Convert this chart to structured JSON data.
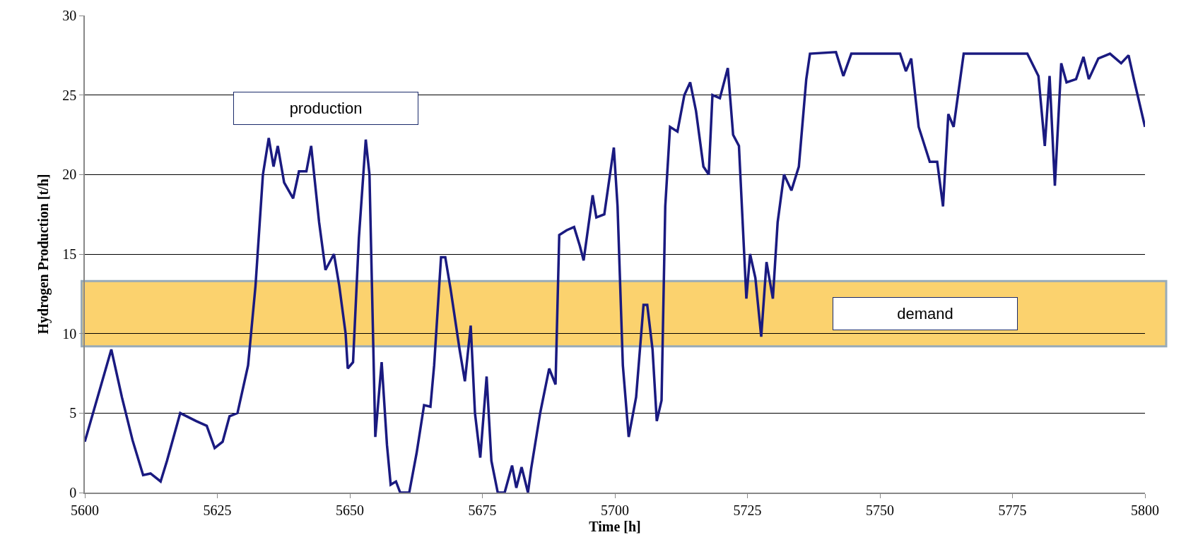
{
  "chart_data": {
    "type": "line",
    "xlabel": "Time [h]",
    "ylabel": "Hydrogen Production [t/h]",
    "x": [
      5600,
      5605,
      5607,
      5609,
      5611,
      5612.4,
      5614.3,
      5615.5,
      5618,
      5621,
      5623,
      5624.5,
      5626,
      5627.3,
      5628.8,
      5630.8,
      5632.2,
      5633.6,
      5634.7,
      5635.6,
      5636.4,
      5637.6,
      5639.3,
      5640.4,
      5641.8,
      5642.7,
      5644.2,
      5645.4,
      5647,
      5648,
      5649.2,
      5649.6,
      5650.6,
      5651.7,
      5653,
      5653.7,
      5654.8,
      5656,
      5657,
      5657.7,
      5658.7,
      5659.5,
      5661.2,
      5662.6,
      5664,
      5665.2,
      5665.9,
      5667.2,
      5668,
      5669,
      5670.7,
      5671.7,
      5672.8,
      5673.6,
      5674.6,
      5675.8,
      5676.7,
      5677.9,
      5679.2,
      5680.6,
      5681.4,
      5682.4,
      5683.6,
      5684.2,
      5685.9,
      5687.6,
      5688.8,
      5689.5,
      5690.9,
      5692.3,
      5693.4,
      5694.1,
      5695.8,
      5696.5,
      5698,
      5699.8,
      5700.5,
      5701.5,
      5702.6,
      5704,
      5705.4,
      5706.1,
      5707.1,
      5707.9,
      5708.8,
      5709.5,
      5710.4,
      5711.8,
      5713.1,
      5714.2,
      5715.3,
      5716.7,
      5717.7,
      5718.4,
      5719.8,
      5721.3,
      5722.3,
      5723.4,
      5724.8,
      5725.5,
      5726.5,
      5727.6,
      5728.6,
      5729.8,
      5730.7,
      5731.9,
      5733.3,
      5734.7,
      5736.1,
      5736.8,
      5741.7,
      5743.1,
      5744.6,
      5753.8,
      5754.9,
      5755.9,
      5757.3,
      5759.4,
      5760.8,
      5761.9,
      5762.9,
      5763.9,
      5765.8,
      5777.8,
      5779.9,
      5781.1,
      5782,
      5783,
      5784.2,
      5785.2,
      5787,
      5788.4,
      5789.4,
      5791.2,
      5793.4,
      5795.5,
      5796.9,
      5797.9,
      5800
    ],
    "series": [
      {
        "color": "#1a1a80",
        "values": [
          3.2,
          9,
          6,
          3.3,
          1.1,
          1.2,
          0.7,
          2,
          5,
          4.5,
          4.2,
          2.8,
          3.2,
          4.8,
          5,
          8,
          13,
          20,
          22.3,
          20.5,
          21.8,
          19.5,
          18.5,
          20.2,
          20.2,
          21.8,
          17,
          14,
          15,
          13,
          10,
          7.8,
          8.2,
          16,
          22.2,
          20,
          3.5,
          8.2,
          3,
          0.5,
          0.7,
          0,
          0,
          2.5,
          5.5,
          5.4,
          8,
          14.8,
          14.8,
          12.8,
          9,
          7,
          10.5,
          5,
          2.2,
          7.3,
          2,
          0,
          0,
          1.7,
          0.3,
          1.6,
          0,
          1.5,
          5,
          7.8,
          6.8,
          16.2,
          16.5,
          16.7,
          15.5,
          14.6,
          18.7,
          17.3,
          17.5,
          21.7,
          18,
          8,
          3.5,
          6,
          11.8,
          11.8,
          9,
          4.5,
          5.8,
          18,
          23,
          22.7,
          25,
          25.8,
          24,
          20.5,
          20,
          25,
          24.8,
          26.7,
          22.5,
          21.8,
          12.2,
          15,
          13.5,
          9.8,
          14.5,
          12.2,
          17,
          20,
          19,
          20.5,
          26,
          27.6,
          27.7,
          26.2,
          27.6,
          27.6,
          26.5,
          27.3,
          23,
          20.8,
          20.8,
          18,
          23.8,
          23,
          27.6,
          27.6,
          26.2,
          21.8,
          26.2,
          19.3,
          27,
          25.8,
          26,
          27.4,
          26,
          27.3,
          27.6,
          27,
          27.5,
          26,
          23
        ]
      }
    ],
    "xlim": [
      5600,
      5800
    ],
    "xticks": [
      5600,
      5625,
      5650,
      5675,
      5700,
      5725,
      5750,
      5775,
      5800
    ],
    "ylim": [
      0,
      30
    ],
    "yticks": [
      0,
      5,
      10,
      15,
      20,
      25,
      30
    ],
    "grid": "y",
    "marker": "none",
    "line_style": "solid",
    "bands": [
      {
        "axis": "y",
        "from": 9.2,
        "to": 13.3,
        "label": "demand",
        "color": "#fbc84a"
      }
    ],
    "annotations": [
      "production"
    ]
  }
}
